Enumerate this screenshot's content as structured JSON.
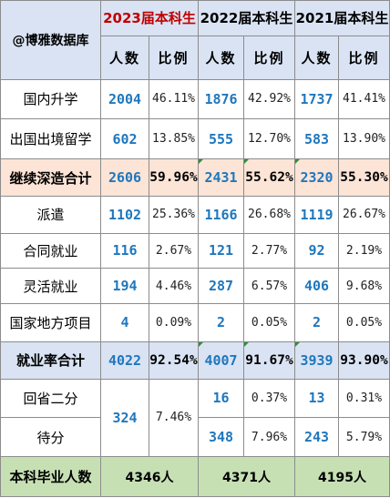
{
  "brand": "@博雅数据库",
  "years": [
    "2023届本科生",
    "2022届本科生",
    "2021届本科生"
  ],
  "col_headers": {
    "count": "人数",
    "ratio": "比例"
  },
  "rows": {
    "domestic": {
      "label": "国内升学",
      "v": [
        "2004",
        "46.11%",
        "1876",
        "42.92%",
        "1737",
        "41.41%"
      ]
    },
    "abroad": {
      "label": "出国出境留学",
      "v": [
        "602",
        "13.85%",
        "555",
        "12.70%",
        "583",
        "13.90%"
      ]
    },
    "further_total": {
      "label": "继续深造合计",
      "v": [
        "2606",
        "59.96%",
        "2431",
        "55.62%",
        "2320",
        "55.30%"
      ]
    },
    "dispatch": {
      "label": "派遣",
      "v": [
        "1102",
        "25.36%",
        "1166",
        "26.68%",
        "1119",
        "26.67%"
      ]
    },
    "contract": {
      "label": "合同就业",
      "v": [
        "116",
        "2.67%",
        "121",
        "2.77%",
        "92",
        "2.19%"
      ]
    },
    "flexible": {
      "label": "灵活就业",
      "v": [
        "194",
        "4.46%",
        "287",
        "6.57%",
        "406",
        "9.68%"
      ]
    },
    "national": {
      "label": "国家地方项目",
      "v": [
        "4",
        "0.09%",
        "2",
        "0.05%",
        "2",
        "0.05%"
      ]
    },
    "employment_total": {
      "label": "就业率合计",
      "v": [
        "4022",
        "92.54%",
        "4007",
        "91.67%",
        "3939",
        "93.90%"
      ]
    },
    "return_province": {
      "label": "回省二分",
      "v": [
        "16",
        "0.37%",
        "13",
        "0.31%"
      ]
    },
    "pending": {
      "label": "待分",
      "v": [
        "348",
        "7.96%",
        "243",
        "5.79%"
      ]
    },
    "merged_2023": {
      "v": [
        "324",
        "7.46%"
      ]
    },
    "graduates_total": {
      "label": "本科毕业人数",
      "v": [
        "4346人",
        "4371人",
        "4195人"
      ]
    }
  }
}
